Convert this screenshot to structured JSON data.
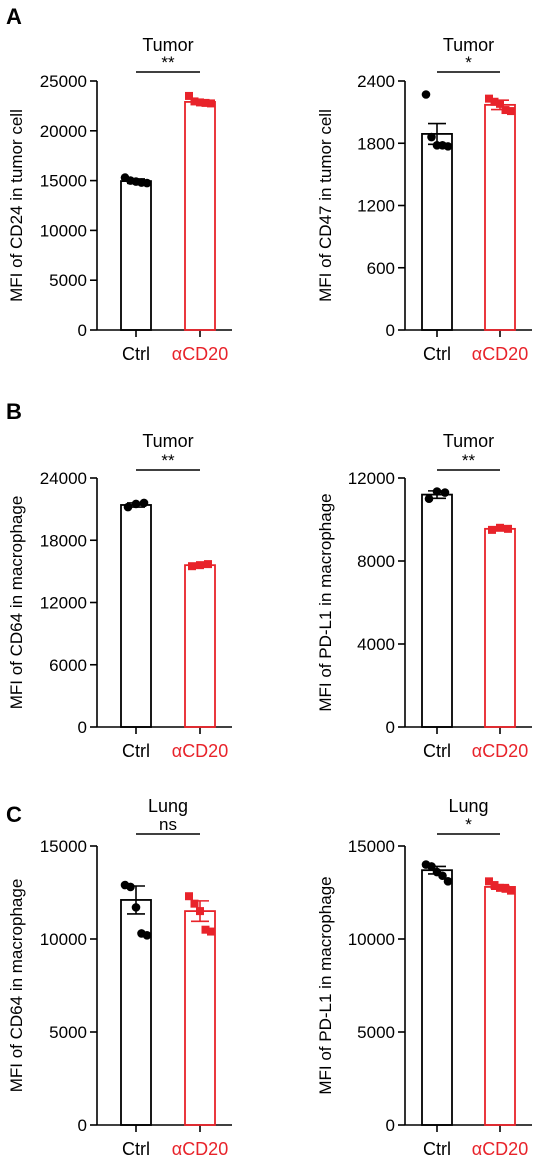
{
  "colors": {
    "ctrl": "#000000",
    "treatment": "#e8232a"
  },
  "chart_data": [
    {
      "panel": "A",
      "type": "bar",
      "title": "Tumor",
      "ylabel": "MFI of CD24 in tumor cell",
      "categories": [
        "Ctrl",
        "αCD20"
      ],
      "ylim": [
        0,
        25000
      ],
      "yticks": [
        0,
        5000,
        10000,
        15000,
        20000,
        25000
      ],
      "values": [
        14950,
        22900
      ],
      "errors": [
        220,
        150
      ],
      "points": [
        [
          15300,
          15000,
          14900,
          14800,
          14750
        ],
        [
          23500,
          22950,
          22850,
          22800,
          22750
        ]
      ],
      "significance": "**"
    },
    {
      "panel": "",
      "type": "bar",
      "title": "Tumor",
      "ylabel": "MFI of CD47 in tumor cell",
      "categories": [
        "Ctrl",
        "αCD20"
      ],
      "ylim": [
        0,
        2400
      ],
      "yticks": [
        0,
        600,
        1200,
        1800,
        2400
      ],
      "values": [
        1890,
        2170
      ],
      "errors": [
        100,
        45
      ],
      "points": [
        [
          2270,
          1860,
          1780,
          1780,
          1770
        ],
        [
          2230,
          2200,
          2180,
          2120,
          2110
        ]
      ],
      "significance": "*"
    },
    {
      "panel": "B",
      "type": "bar",
      "title": "Tumor",
      "ylabel": "MFI of CD64 in macrophage",
      "categories": [
        "Ctrl",
        "αCD20"
      ],
      "ylim": [
        0,
        24000
      ],
      "yticks": [
        0,
        6000,
        12000,
        18000,
        24000
      ],
      "values": [
        21400,
        15600
      ],
      "errors": [
        200,
        150
      ],
      "points": [
        [
          21200,
          21500,
          21600
        ],
        [
          15500,
          15600,
          15700
        ]
      ],
      "significance": "**"
    },
    {
      "panel": "",
      "type": "bar",
      "title": "Tumor",
      "ylabel": "MFI of PD-L1 in macrophage",
      "categories": [
        "Ctrl",
        "αCD20"
      ],
      "ylim": [
        0,
        12000
      ],
      "yticks": [
        0,
        4000,
        8000,
        12000
      ],
      "values": [
        11200,
        9550
      ],
      "errors": [
        180,
        80
      ],
      "points": [
        [
          11000,
          11350,
          11300
        ],
        [
          9500,
          9600,
          9550
        ]
      ],
      "significance": "**"
    },
    {
      "panel": "C",
      "type": "bar",
      "title": "Lung",
      "ylabel": "MFI of CD64 in macrophage",
      "categories": [
        "Ctrl",
        "αCD20"
      ],
      "ylim": [
        0,
        15000
      ],
      "yticks": [
        0,
        5000,
        10000,
        15000
      ],
      "values": [
        12100,
        11500
      ],
      "errors": [
        750,
        550
      ],
      "points": [
        [
          12900,
          12800,
          11700,
          10300,
          10200
        ],
        [
          12300,
          11900,
          11500,
          10500,
          10400
        ]
      ],
      "significance": "ns"
    },
    {
      "panel": "",
      "type": "bar",
      "title": "Lung",
      "ylabel": "MFI of PD-L1 in macrophage",
      "categories": [
        "Ctrl",
        "αCD20"
      ],
      "ylim": [
        0,
        15000
      ],
      "yticks": [
        0,
        5000,
        10000,
        15000
      ],
      "values": [
        13700,
        12800
      ],
      "errors": [
        200,
        120
      ],
      "points": [
        [
          14000,
          13900,
          13600,
          13400,
          13100
        ],
        [
          13100,
          12900,
          12750,
          12700,
          12600
        ]
      ],
      "significance": "*"
    }
  ]
}
